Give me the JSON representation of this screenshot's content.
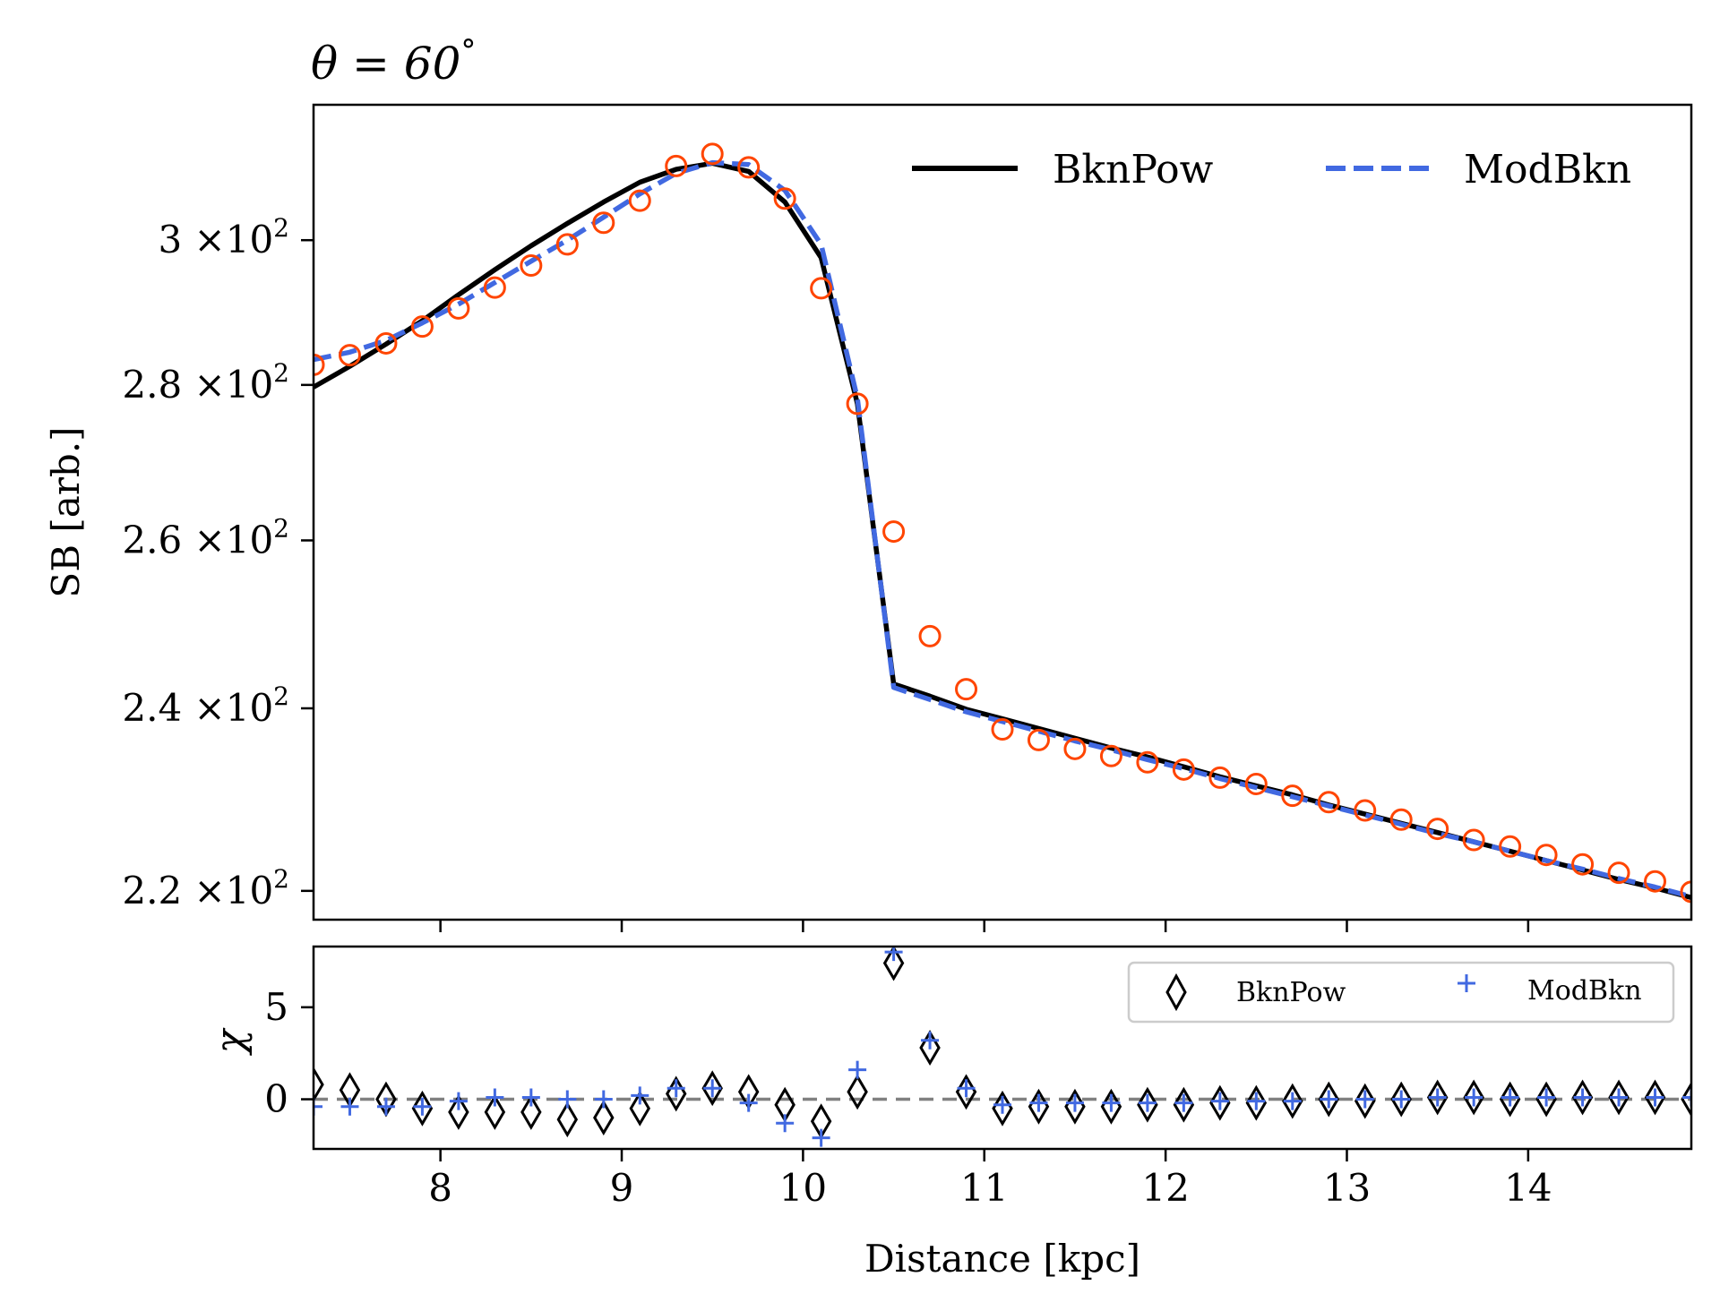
{
  "chart_data": [
    {
      "type": "line",
      "title_prefix": "θ = 60",
      "title_suffix": "°",
      "ylabel": "SB [arb.]",
      "xlabel": "",
      "xlim": [
        7.3,
        14.9
      ],
      "ylim": [
        217,
        320
      ],
      "yscale": "log",
      "x_ticks": [
        8,
        9,
        10,
        11,
        12,
        13,
        14
      ],
      "y_ticks": [
        {
          "value": 220,
          "mantissa": "2.2",
          "times": "×10",
          "exp": "2"
        },
        {
          "value": 240,
          "mantissa": "2.4",
          "times": "×10",
          "exp": "2"
        },
        {
          "value": 260,
          "mantissa": "2.6",
          "times": "×10",
          "exp": "2"
        },
        {
          "value": 280,
          "mantissa": "2.8",
          "times": "×10",
          "exp": "2"
        },
        {
          "value": 300,
          "mantissa": "3",
          "times": "×10",
          "exp": "2"
        }
      ],
      "legend_position": "top-right",
      "colors": {
        "data": "#ff4500",
        "bknpow": "#000000",
        "modbkn": "#4169e1"
      },
      "series": [
        {
          "name": "BknPow",
          "style": "solid",
          "x": [
            7.3,
            7.5,
            7.7,
            7.9,
            8.1,
            8.3,
            8.5,
            8.7,
            8.9,
            9.1,
            9.3,
            9.5,
            9.7,
            9.9,
            10.1,
            10.3,
            10.5,
            10.7,
            10.9,
            11.1,
            11.3,
            11.5,
            11.7,
            11.9,
            12.1,
            12.3,
            12.5,
            12.7,
            12.9,
            13.1,
            13.3,
            13.5,
            13.7,
            13.9,
            14.1,
            14.3,
            14.5,
            14.7,
            14.9
          ],
          "y": [
            279.7,
            282.5,
            285.5,
            288.7,
            292.3,
            295.8,
            299.2,
            302.4,
            305.5,
            308.4,
            310.3,
            311.2,
            310.0,
            305.5,
            297.5,
            277.5,
            242.8,
            241.4,
            239.9,
            238.8,
            237.7,
            236.6,
            235.5,
            234.5,
            233.4,
            232.3,
            231.3,
            230.3,
            229.2,
            228.2,
            227.2,
            226.2,
            225.2,
            224.2,
            223.2,
            222.2,
            221.2,
            220.3,
            219.3
          ]
        },
        {
          "name": "ModBkn",
          "style": "dashed",
          "x": [
            7.3,
            7.5,
            7.7,
            7.9,
            8.1,
            8.3,
            8.5,
            8.7,
            8.9,
            9.1,
            9.3,
            9.5,
            9.7,
            9.9,
            10.1,
            10.3,
            10.5,
            10.7,
            10.9,
            11.1,
            11.3,
            11.5,
            11.7,
            11.9,
            12.1,
            12.3,
            12.5,
            12.7,
            12.9,
            13.1,
            13.3,
            13.5,
            13.7,
            13.9,
            14.1,
            14.3,
            14.5,
            14.7,
            14.9
          ],
          "y": [
            283.4,
            284.4,
            286.0,
            288.4,
            291.0,
            294.0,
            297.0,
            300.0,
            303.3,
            306.7,
            309.7,
            311.3,
            311.0,
            307.2,
            299.4,
            278.2,
            242.4,
            241.0,
            239.6,
            238.5,
            237.4,
            236.3,
            235.3,
            234.2,
            233.2,
            232.1,
            231.1,
            230.1,
            229.1,
            228.1,
            227.1,
            226.1,
            225.2,
            224.2,
            223.2,
            222.3,
            221.3,
            220.4,
            219.4
          ]
        },
        {
          "name": "",
          "style": "markers",
          "x": [
            7.3,
            7.5,
            7.7,
            7.9,
            8.1,
            8.3,
            8.5,
            8.7,
            8.9,
            9.1,
            9.3,
            9.5,
            9.7,
            9.9,
            10.1,
            10.3,
            10.5,
            10.7,
            10.9,
            11.1,
            11.3,
            11.5,
            11.7,
            11.9,
            12.1,
            12.3,
            12.5,
            12.7,
            12.9,
            13.1,
            13.3,
            13.5,
            13.7,
            13.9,
            14.1,
            14.3,
            14.5,
            14.7,
            14.9
          ],
          "y": [
            282.7,
            284.0,
            285.6,
            287.9,
            290.4,
            293.3,
            296.4,
            299.4,
            302.5,
            305.7,
            310.8,
            312.6,
            310.6,
            306.0,
            293.2,
            277.5,
            261.1,
            248.4,
            242.2,
            237.6,
            236.4,
            235.4,
            234.6,
            233.9,
            233.1,
            232.2,
            231.5,
            230.2,
            229.5,
            228.6,
            227.6,
            226.6,
            225.4,
            224.7,
            223.8,
            222.8,
            221.9,
            221.0,
            219.9
          ]
        }
      ]
    },
    {
      "type": "scatter",
      "ylabel": "χ",
      "xlabel": "Distance [kpc]",
      "xlim": [
        7.3,
        14.9
      ],
      "ylim": [
        -2.7,
        8.3
      ],
      "x_ticks": [
        8,
        9,
        10,
        11,
        12,
        13,
        14
      ],
      "y_ticks": [
        0,
        5
      ],
      "reference_line": 0,
      "legend_position": "top-right",
      "colors": {
        "bknpow": "#000000",
        "modbkn": "#4169e1",
        "reference": "#808080"
      },
      "series": [
        {
          "name": "BknPow",
          "marker": "diamond",
          "x": [
            7.3,
            7.5,
            7.7,
            7.9,
            8.1,
            8.3,
            8.5,
            8.7,
            8.9,
            9.1,
            9.3,
            9.5,
            9.7,
            9.9,
            10.1,
            10.3,
            10.5,
            10.7,
            10.9,
            11.1,
            11.3,
            11.5,
            11.7,
            11.9,
            12.1,
            12.3,
            12.5,
            12.7,
            12.9,
            13.1,
            13.3,
            13.5,
            13.7,
            13.9,
            14.1,
            14.3,
            14.5,
            14.7,
            14.9
          ],
          "y": [
            0.8,
            0.5,
            0.0,
            -0.5,
            -0.7,
            -0.7,
            -0.7,
            -1.1,
            -1.0,
            -0.5,
            0.3,
            0.6,
            0.4,
            -0.3,
            -1.2,
            0.4,
            7.4,
            2.8,
            0.4,
            -0.5,
            -0.4,
            -0.4,
            -0.4,
            -0.3,
            -0.3,
            -0.2,
            -0.2,
            -0.1,
            0.0,
            -0.1,
            0.0,
            0.1,
            0.1,
            0.0,
            0.0,
            0.1,
            0.1,
            0.1,
            0.0
          ]
        },
        {
          "name": "ModBkn",
          "marker": "plus",
          "x": [
            7.3,
            7.5,
            7.7,
            7.9,
            8.1,
            8.3,
            8.5,
            8.7,
            8.9,
            9.1,
            9.3,
            9.5,
            9.7,
            9.9,
            10.1,
            10.3,
            10.5,
            10.7,
            10.9,
            11.1,
            11.3,
            11.5,
            11.7,
            11.9,
            12.1,
            12.3,
            12.5,
            12.7,
            12.9,
            13.1,
            13.3,
            13.5,
            13.7,
            13.9,
            14.1,
            14.3,
            14.5,
            14.7,
            14.9
          ],
          "y": [
            -0.4,
            -0.4,
            -0.4,
            -0.4,
            -0.1,
            0.1,
            0.1,
            0.0,
            0.0,
            0.2,
            0.6,
            0.6,
            -0.2,
            -1.3,
            -2.1,
            1.6,
            8.0,
            3.2,
            0.6,
            -0.3,
            -0.2,
            -0.2,
            -0.2,
            -0.2,
            -0.2,
            -0.1,
            -0.1,
            -0.1,
            0.0,
            0.0,
            0.0,
            0.1,
            0.1,
            0.1,
            0.1,
            0.1,
            0.1,
            0.1,
            0.1
          ]
        }
      ]
    }
  ]
}
